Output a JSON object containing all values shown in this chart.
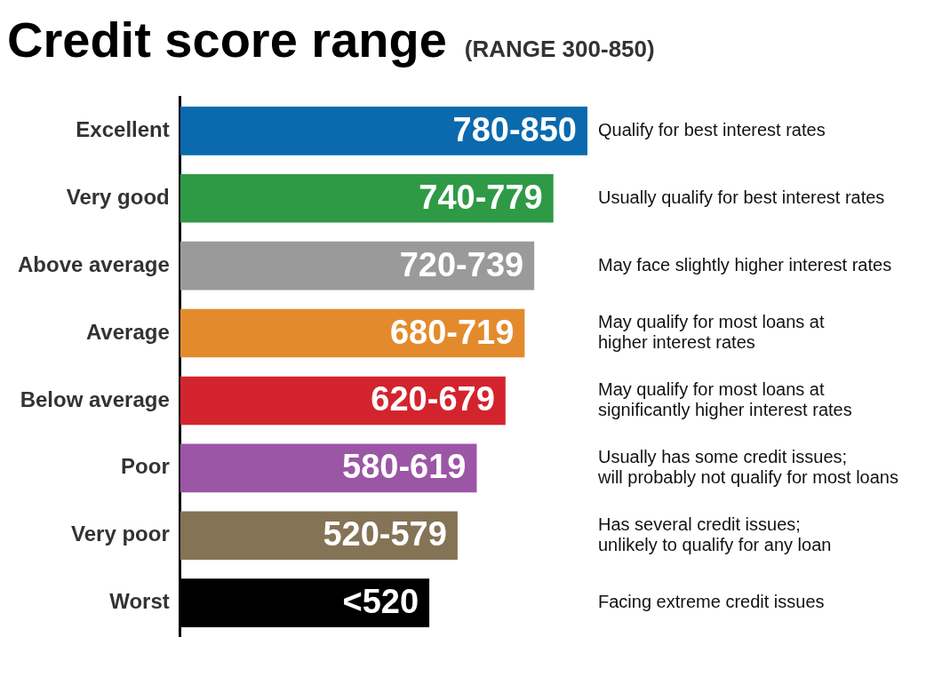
{
  "chart_data": {
    "type": "bar",
    "orientation": "horizontal",
    "xlim": [
      0,
      850
    ],
    "tick_labels": "y",
    "title": "Credit score range",
    "subtitle": "(RANGE 300-850)",
    "categories": [
      "Excellent",
      "Very good",
      "Above average",
      "Average",
      "Below average",
      "Poor",
      "Very poor",
      "Worst"
    ],
    "values": [
      850,
      779,
      739,
      719,
      679,
      619,
      579,
      520
    ],
    "colors": [
      "#0a6aad",
      "#2e9a46",
      "#9a9a9a",
      "#e38b2c",
      "#d3242e",
      "#9b56a6",
      "#857356",
      "#000000"
    ],
    "value_labels": [
      "780-850",
      "740-779",
      "720-739",
      "680-719",
      "620-679",
      "580-619",
      "520-579",
      "<520"
    ],
    "annotations": [
      "Qualify for best interest rates",
      "Usually qualify for best interest rates",
      "May face slightly higher interest rates",
      "May qualify for most loans at\nhigher interest rates",
      "May qualify for most loans at\nsignificantly higher interest rates",
      "Usually has some credit issues;\nwill probably not qualify for most loans",
      "Has several credit issues;\nunlikely to qualify for any loan",
      "Facing extreme credit issues"
    ]
  }
}
